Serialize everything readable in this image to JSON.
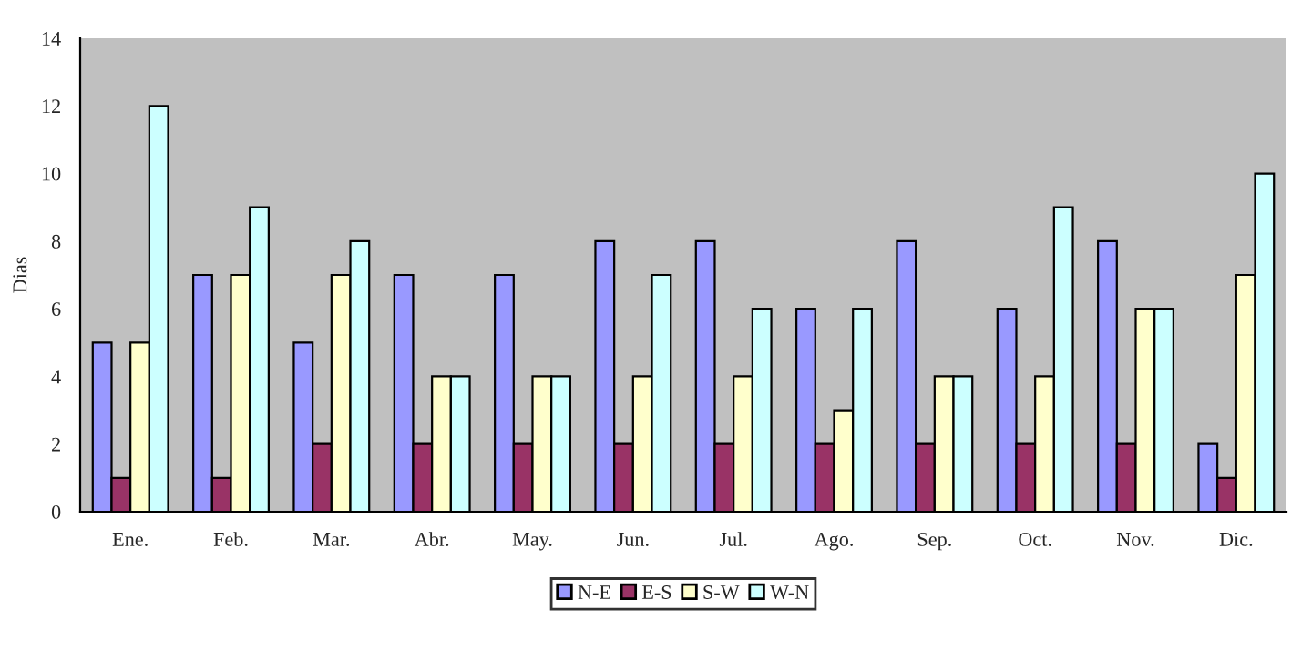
{
  "chart_data": {
    "type": "bar",
    "ylabel": "Dias",
    "categories": [
      "Ene.",
      "Feb.",
      "Mar.",
      "Abr.",
      "May.",
      "Jun.",
      "Jul.",
      "Ago.",
      "Sep.",
      "Oct.",
      "Nov.",
      "Dic."
    ],
    "series": [
      {
        "name": "N-E",
        "color": "#9999ff",
        "values": [
          5,
          7,
          5,
          7,
          7,
          8,
          8,
          6,
          8,
          6,
          8,
          2
        ]
      },
      {
        "name": "E-S",
        "color": "#993366",
        "values": [
          1,
          1,
          2,
          2,
          2,
          2,
          2,
          2,
          2,
          2,
          2,
          1
        ]
      },
      {
        "name": "S-W",
        "color": "#ffffcc",
        "values": [
          5,
          7,
          7,
          4,
          4,
          4,
          4,
          3,
          4,
          4,
          6,
          7
        ]
      },
      {
        "name": "W-N",
        "color": "#ccffff",
        "values": [
          12,
          9,
          8,
          4,
          4,
          7,
          6,
          6,
          4,
          9,
          6,
          10
        ]
      }
    ],
    "ylim": [
      0,
      14
    ],
    "yticks": [
      0,
      2,
      4,
      6,
      8,
      10,
      12,
      14
    ],
    "grid": false,
    "legend": "bottom"
  }
}
